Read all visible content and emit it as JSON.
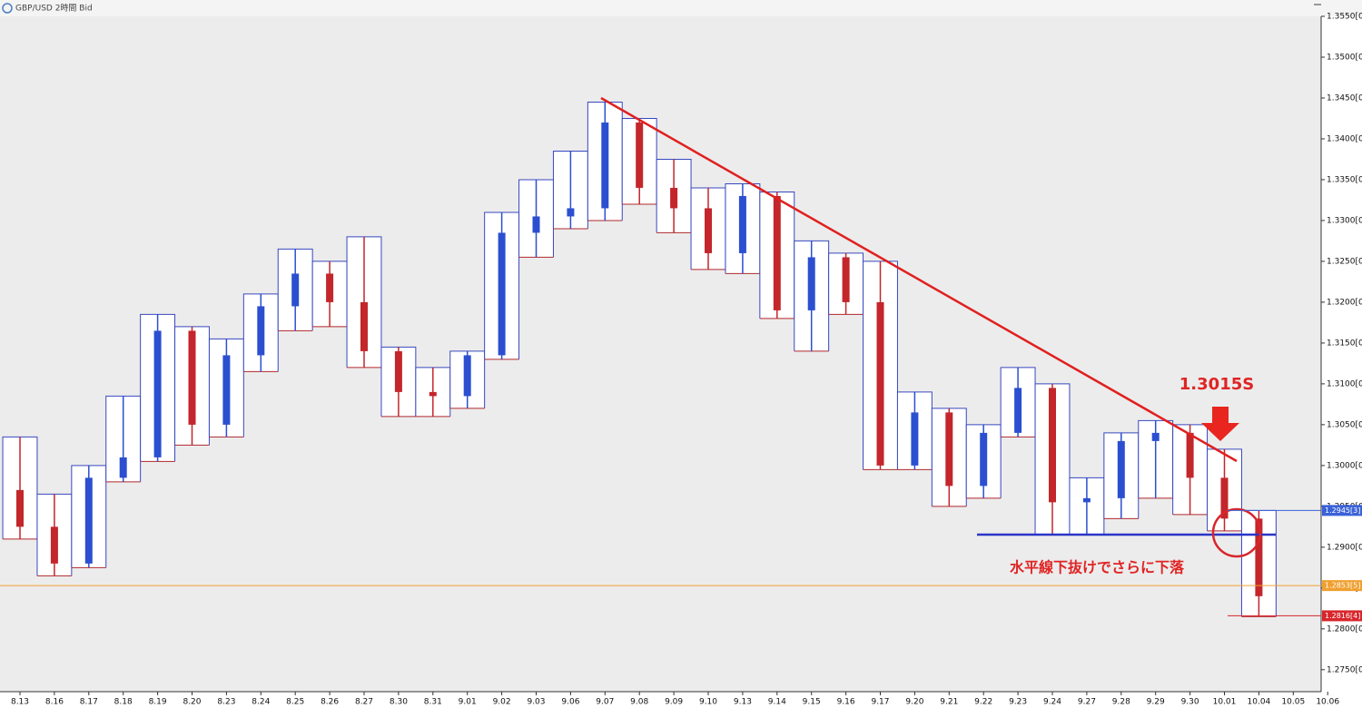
{
  "window_title": "GBP/USD 2時間 Bid",
  "chart_data": {
    "type": "candlestick",
    "categories": [
      "8.13",
      "8.16",
      "8.17",
      "8.18",
      "8.19",
      "8.20",
      "8.23",
      "8.24",
      "8.25",
      "8.26",
      "8.27",
      "8.30",
      "8.31",
      "9.01",
      "9.02",
      "9.03",
      "9.06",
      "9.07",
      "9.08",
      "9.09",
      "9.10",
      "9.13",
      "9.14",
      "9.15",
      "9.16",
      "9.17",
      "9.20",
      "9.21",
      "9.22",
      "9.23",
      "9.24",
      "9.27",
      "9.28",
      "9.29",
      "9.30",
      "10.01",
      "10.04",
      "10.05",
      "10.06"
    ],
    "open": [
      1.297,
      1.2925,
      1.288,
      1.2985,
      1.301,
      1.3165,
      1.305,
      1.3135,
      1.3195,
      1.3235,
      1.32,
      1.314,
      1.309,
      1.3085,
      1.3135,
      1.3285,
      1.3305,
      1.3315,
      1.342,
      1.334,
      1.3315,
      1.326,
      1.333,
      1.319,
      1.3255,
      1.32,
      1.3,
      1.3065,
      1.2975,
      1.304,
      1.3095,
      1.2955,
      1.296,
      1.303,
      1.304,
      1.2985,
      1.2935,
      null,
      null
    ],
    "high": [
      1.3035,
      1.2965,
      1.3,
      1.3085,
      1.3185,
      1.317,
      1.3155,
      1.321,
      1.3265,
      1.325,
      1.328,
      1.3145,
      1.312,
      1.314,
      1.331,
      1.335,
      1.3385,
      1.3445,
      1.3425,
      1.3375,
      1.334,
      1.3345,
      1.3335,
      1.3275,
      1.326,
      1.325,
      1.309,
      1.307,
      1.305,
      1.312,
      1.31,
      1.2985,
      1.304,
      1.3055,
      1.305,
      1.302,
      1.2945,
      null,
      null
    ],
    "low": [
      1.291,
      1.2865,
      1.2875,
      1.298,
      1.3005,
      1.3025,
      1.3035,
      1.3115,
      1.3165,
      1.317,
      1.312,
      1.306,
      1.306,
      1.307,
      1.313,
      1.3255,
      1.329,
      1.33,
      1.332,
      1.3285,
      1.324,
      1.3235,
      1.318,
      1.314,
      1.3185,
      1.2995,
      1.2995,
      1.295,
      1.296,
      1.3035,
      1.2915,
      1.2915,
      1.2935,
      1.296,
      1.294,
      1.292,
      1.2815,
      null,
      null
    ],
    "close": [
      1.2925,
      1.288,
      1.2985,
      1.301,
      1.3165,
      1.305,
      1.3135,
      1.3195,
      1.3235,
      1.32,
      1.314,
      1.309,
      1.3085,
      1.3135,
      1.3285,
      1.3305,
      1.3315,
      1.342,
      1.334,
      1.3315,
      1.326,
      1.333,
      1.319,
      1.3255,
      1.32,
      1.3,
      1.3065,
      1.2975,
      1.304,
      1.3095,
      1.2955,
      1.296,
      1.303,
      1.304,
      1.2985,
      1.2935,
      1.284,
      null,
      null
    ],
    "up_color": "#2b4fd0",
    "down_color": "#c3262b",
    "ylim": [
      1.2712,
      1.355
    ],
    "yticks": [
      {
        "value": 1.275,
        "label": "1.2750[0]"
      },
      {
        "value": 1.28,
        "label": "1.2800[0]"
      },
      {
        "value": 1.285,
        "label": "1.2850[0]"
      },
      {
        "value": 1.29,
        "label": "1.2900[0]"
      },
      {
        "value": 1.295,
        "label": "1.2950[0]"
      },
      {
        "value": 1.3,
        "label": "1.3000[0]"
      },
      {
        "value": 1.305,
        "label": "1.3050[0]"
      },
      {
        "value": 1.31,
        "label": "1.3100[0]"
      },
      {
        "value": 1.315,
        "label": "1.3150[0]"
      },
      {
        "value": 1.32,
        "label": "1.3200[0]"
      },
      {
        "value": 1.325,
        "label": "1.3250[0]"
      },
      {
        "value": 1.33,
        "label": "1.3300[0]"
      },
      {
        "value": 1.335,
        "label": "1.3350[0]"
      },
      {
        "value": 1.34,
        "label": "1.3400[0]"
      },
      {
        "value": 1.345,
        "label": "1.3450[0]"
      },
      {
        "value": 1.35,
        "label": "1.3500[0]"
      },
      {
        "value": 1.355,
        "label": "1.3550[0]"
      }
    ],
    "price_tags": [
      {
        "value": 1.2945,
        "label": "1.2945[3]",
        "color": "#3a62d8"
      },
      {
        "value": 1.2853,
        "label": "1.2853[5]",
        "color": "#f0a030"
      },
      {
        "value": 1.2816,
        "label": "1.2816[4]",
        "color": "#d8262b"
      }
    ],
    "annotations": [
      "1.3015S",
      "水平線下抜けでさらに下落"
    ]
  }
}
